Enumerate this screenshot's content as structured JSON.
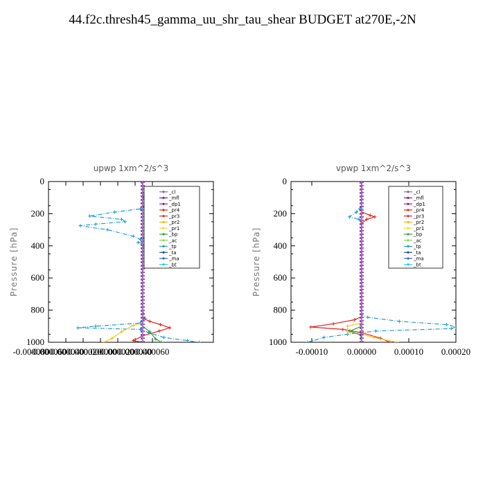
{
  "title": "44.f2c.thresh45_gamma_uu_shr_tau_shear  BUDGET at270E,-2N",
  "chart_data": [
    {
      "type": "line",
      "title": "upwp   1xm^2/s^3",
      "ylabel": "Pressure [hPa]",
      "ylim": [
        1000,
        0
      ],
      "xlim": [
        -8e-05,
        6e-05
      ],
      "xticks": [
        "-0.000080",
        "-0.000060",
        "-0.000040",
        "-0.000020",
        "0.000000",
        "0.000020",
        "0.000040",
        "0.000060"
      ],
      "yticks": [
        0,
        200,
        400,
        600,
        800,
        1000
      ],
      "legend": [
        "_cl",
        "_mfl",
        "_dp1",
        "_pr4",
        "_pr3",
        "_pr2",
        "_pr1",
        "_bp",
        "_ac",
        "_tp",
        "_ta",
        "_ma",
        "_bt"
      ],
      "series": [
        {
          "name": "_tp",
          "color": "#1f9bd1",
          "values": [
            [
              0,
              0
            ],
            [
              0,
              60
            ],
            [
              1e-06,
              100
            ],
            [
              2e-06,
              150
            ],
            [
              -2e-06,
              170
            ],
            [
              -2.4e-05,
              190
            ],
            [
              -4.5e-05,
              215
            ],
            [
              -1.8e-05,
              235
            ],
            [
              -1.5e-05,
              250
            ],
            [
              -4e-05,
              265
            ],
            [
              -5.3e-05,
              275
            ],
            [
              -3e-05,
              300
            ],
            [
              -8e-06,
              340
            ],
            [
              -2e-06,
              360
            ],
            [
              -4e-06,
              380
            ],
            [
              3e-06,
              390
            ],
            [
              1.5e-06,
              400
            ],
            [
              0,
              420
            ],
            [
              0,
              800
            ],
            [
              2e-06,
              850
            ],
            [
              -2e-06,
              880
            ],
            [
              -4e-05,
              900
            ],
            [
              -5.5e-05,
              910
            ],
            [
              -2e-06,
              920
            ],
            [
              5e-06,
              940
            ],
            [
              1.8e-05,
              970
            ],
            [
              3.8e-05,
              990
            ],
            [
              4.8e-05,
              1000
            ]
          ]
        },
        {
          "name": "_pr4",
          "color": "#e32119",
          "values": [
            [
              0,
              0
            ],
            [
              0,
              160
            ],
            [
              1.4e-05,
              190
            ],
            [
              1e-05,
              220
            ],
            [
              1.5e-05,
              230
            ],
            [
              2.3e-05,
              245
            ],
            [
              2e-05,
              265
            ],
            [
              1e-05,
              290
            ],
            [
              3e-06,
              330
            ],
            [
              0,
              360
            ],
            [
              0,
              850
            ],
            [
              6e-06,
              870
            ],
            [
              1.5e-05,
              890
            ],
            [
              2.3e-05,
              910
            ],
            [
              1.4e-05,
              930
            ],
            [
              0,
              960
            ],
            [
              -8e-06,
              990
            ],
            [
              0,
              1000
            ]
          ]
        },
        {
          "name": "_pr2",
          "color": "#f7c21e",
          "values": [
            [
              0,
              0
            ],
            [
              0,
              880
            ],
            [
              -8e-06,
              895
            ],
            [
              -1.8e-05,
              935
            ],
            [
              -2.6e-05,
              975
            ],
            [
              -3.3e-05,
              1000
            ]
          ]
        },
        {
          "name": "_bp",
          "color": "#26a63a",
          "values": [
            [
              0,
              0
            ],
            [
              0,
              900
            ],
            [
              6e-06,
              935
            ],
            [
              1.1e-05,
              980
            ],
            [
              1.6e-05,
              1000
            ]
          ]
        },
        {
          "name": "_dp1",
          "color": "#a31a8e",
          "values": [
            [
              0,
              0
            ],
            [
              0,
              1000
            ]
          ]
        }
      ]
    },
    {
      "type": "line",
      "title": "vpwp   1xm^2/s^3",
      "ylabel": "Pressure [hPa]",
      "ylim": [
        1000,
        0
      ],
      "xlim": [
        -0.00015,
        0.0002
      ],
      "xticks": [
        "-0.00010",
        "0.00000",
        "0.00010",
        "0.00020"
      ],
      "yticks": [
        0,
        200,
        400,
        600,
        800,
        1000
      ],
      "legend": [
        "_cl",
        "_mfl",
        "_dp1",
        "_pr4",
        "_pr3",
        "_pr2",
        "_pr1",
        "_bp",
        "_ac",
        "_tp",
        "_ta",
        "_ma",
        "_bt"
      ],
      "series": [
        {
          "name": "_tp",
          "color": "#1f9bd1",
          "values": [
            [
              0,
              0
            ],
            [
              0,
              150
            ],
            [
              -4e-06,
              170
            ],
            [
              -1.1e-05,
              190
            ],
            [
              -2.6e-05,
              220
            ],
            [
              -6e-06,
              235
            ],
            [
              0,
              260
            ],
            [
              0,
              830
            ],
            [
              1.3e-05,
              845
            ],
            [
              8e-05,
              870
            ],
            [
              0.00018,
              890
            ],
            [
              0.0002,
              905
            ],
            [
              0.00019,
              915
            ],
            [
              3e-05,
              930
            ],
            [
              -3e-05,
              950
            ],
            [
              -8e-05,
              970
            ],
            [
              -0.000115,
              1000
            ]
          ]
        },
        {
          "name": "_pr4",
          "color": "#e32119",
          "values": [
            [
              0,
              0
            ],
            [
              0,
              190
            ],
            [
              1.8e-05,
              210
            ],
            [
              2.8e-05,
              220
            ],
            [
              1.1e-05,
              235
            ],
            [
              0,
              260
            ],
            [
              0,
              840
            ],
            [
              -1.5e-05,
              860
            ],
            [
              -6e-05,
              885
            ],
            [
              -0.000108,
              905
            ],
            [
              -4e-05,
              920
            ],
            [
              0,
              940
            ],
            [
              4e-05,
              975
            ],
            [
              6e-05,
              1000
            ]
          ]
        },
        {
          "name": "_pr2",
          "color": "#f7c21e",
          "values": [
            [
              0,
              0
            ],
            [
              0,
              880
            ],
            [
              -3e-05,
              900
            ],
            [
              -3e-05,
              935
            ],
            [
              0,
              950
            ],
            [
              2.5e-05,
              970
            ],
            [
              7.5e-05,
              1000
            ]
          ]
        },
        {
          "name": "_bp",
          "color": "#26a63a",
          "values": [
            [
              0,
              0
            ],
            [
              0,
              900
            ],
            [
              -2.5e-05,
              930
            ],
            [
              -2e-06,
              955
            ],
            [
              0,
              1000
            ]
          ]
        },
        {
          "name": "_dp1",
          "color": "#a31a8e",
          "values": [
            [
              0,
              0
            ],
            [
              0,
              1000
            ]
          ]
        }
      ]
    }
  ]
}
